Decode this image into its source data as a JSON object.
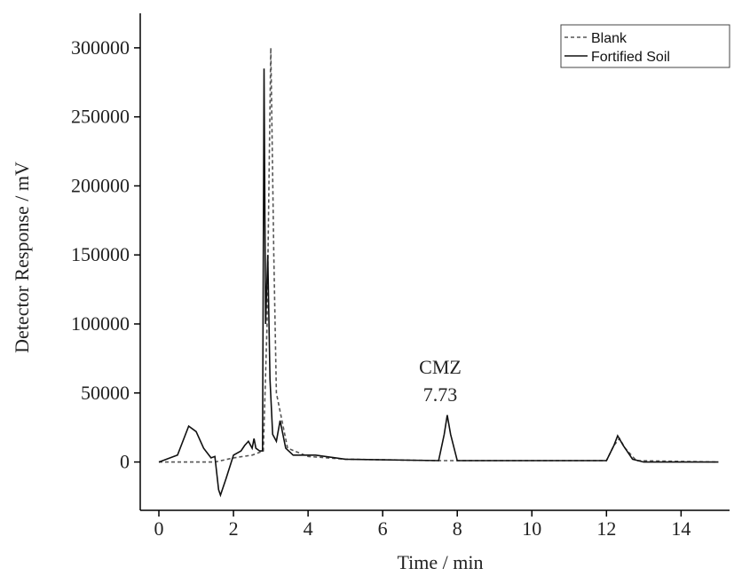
{
  "chart_data": {
    "type": "line",
    "x_label": "Time / min",
    "y_label": "Detector Response / mV",
    "annotations": [
      "CMZ",
      "7.73"
    ],
    "xlim": [
      -0.5,
      15.3
    ],
    "xticks": [
      0,
      2,
      4,
      6,
      8,
      10,
      12,
      14
    ],
    "ylim": [
      -35000,
      325000
    ],
    "yticks": [
      0,
      50000,
      100000,
      150000,
      200000,
      250000,
      300000
    ],
    "legend_position": "upper right",
    "series": [
      {
        "name": "Blank",
        "color": "#555555",
        "dash": true,
        "x": [
          0,
          1.5,
          2,
          2.5,
          2.8,
          2.9,
          3.0,
          3.08,
          3.15,
          3.3,
          3.45,
          4,
          5,
          7.5,
          12,
          12.2,
          12.35,
          12.5,
          12.8,
          15
        ],
        "values": [
          0,
          0,
          3000,
          5000,
          8000,
          100000,
          300000,
          150000,
          50000,
          30000,
          10000,
          4000,
          2000,
          1000,
          1000,
          12000,
          17000,
          10000,
          1000,
          0
        ]
      },
      {
        "name": "Fortified Soil",
        "color": "#111111",
        "dash": false,
        "x": [
          0,
          0.5,
          0.8,
          1.0,
          1.2,
          1.4,
          1.5,
          1.6,
          1.65,
          1.8,
          2.0,
          2.2,
          2.3,
          2.4,
          2.5,
          2.55,
          2.6,
          2.7,
          2.78,
          2.82,
          2.86,
          2.92,
          2.98,
          3.05,
          3.15,
          3.25,
          3.4,
          3.6,
          4.2,
          5,
          7.5,
          7.65,
          7.73,
          7.82,
          8.0,
          12,
          12.2,
          12.3,
          12.45,
          12.7,
          13,
          15
        ],
        "values": [
          0,
          5000,
          26000,
          22000,
          10000,
          3000,
          4000,
          -20000,
          -24000,
          -12000,
          5000,
          8000,
          12000,
          15000,
          10000,
          17000,
          10000,
          8000,
          8000,
          285000,
          100000,
          150000,
          60000,
          20000,
          15000,
          30000,
          10000,
          5000,
          5000,
          2000,
          1000,
          20000,
          34000,
          20000,
          1000,
          1000,
          12000,
          19000,
          12000,
          2000,
          0,
          0
        ]
      }
    ]
  }
}
